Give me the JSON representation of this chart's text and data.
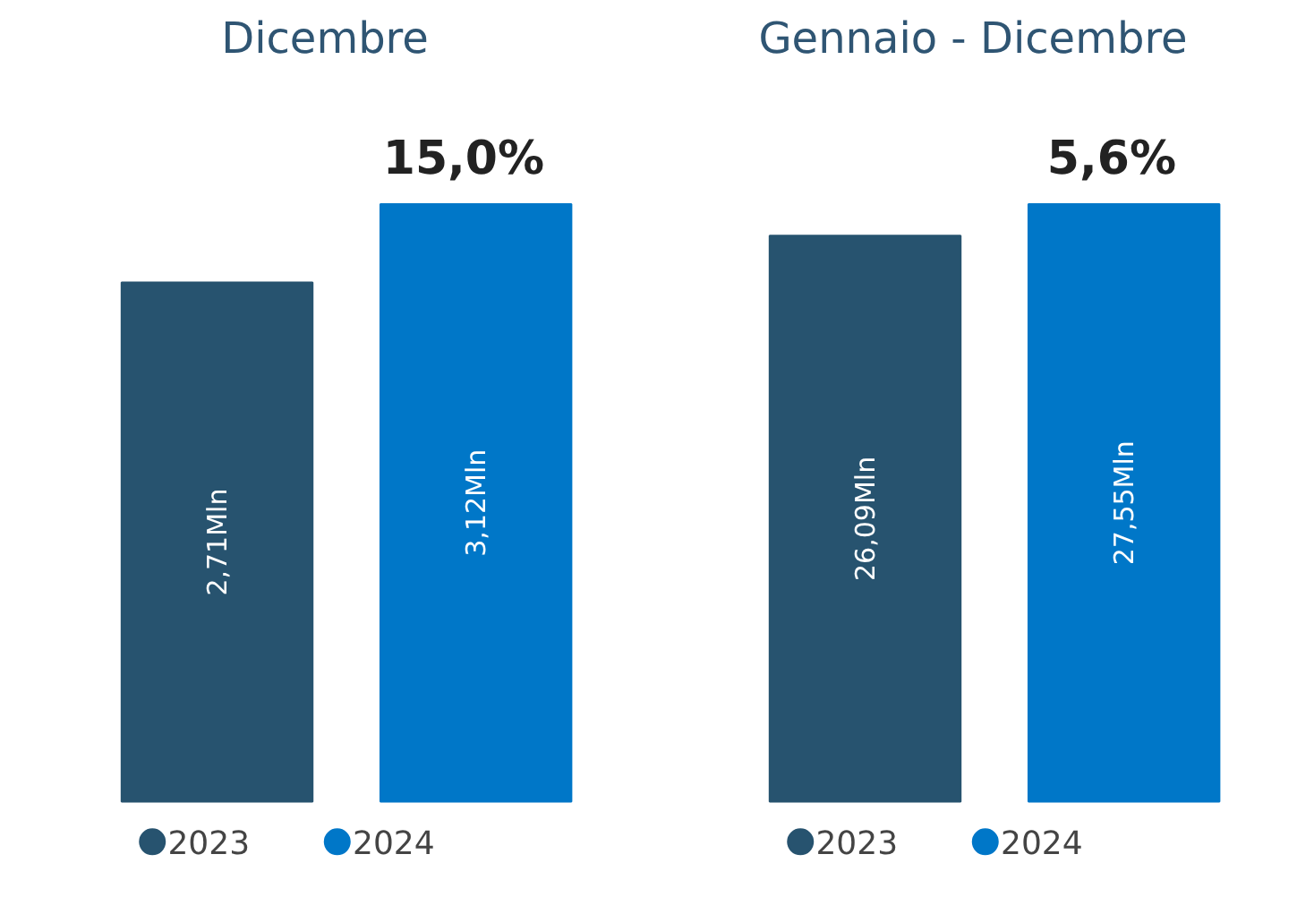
{
  "chart_data": [
    {
      "type": "bar",
      "title": "Dicembre",
      "categories": [
        null
      ],
      "legend": "bottom",
      "annotations": [
        "15,0%"
      ],
      "series": [
        {
          "name": "2023",
          "color": "#27536f",
          "values": [
            2.71
          ],
          "value_labels": [
            "2,71Mln"
          ]
        },
        {
          "name": "2024",
          "color": "#0077c8",
          "values": [
            3.12
          ],
          "value_labels": [
            "3,12Mln"
          ]
        }
      ]
    },
    {
      "type": "bar",
      "title": "Gennaio - Dicembre",
      "categories": [
        null
      ],
      "legend": "bottom",
      "annotations": [
        "5,6%"
      ],
      "series": [
        {
          "name": "2023",
          "color": "#27536f",
          "values": [
            26.09
          ],
          "value_labels": [
            "26,09Mln"
          ]
        },
        {
          "name": "2024",
          "color": "#0077c8",
          "values": [
            27.55
          ],
          "value_labels": [
            "27,55Mln"
          ]
        }
      ]
    }
  ]
}
